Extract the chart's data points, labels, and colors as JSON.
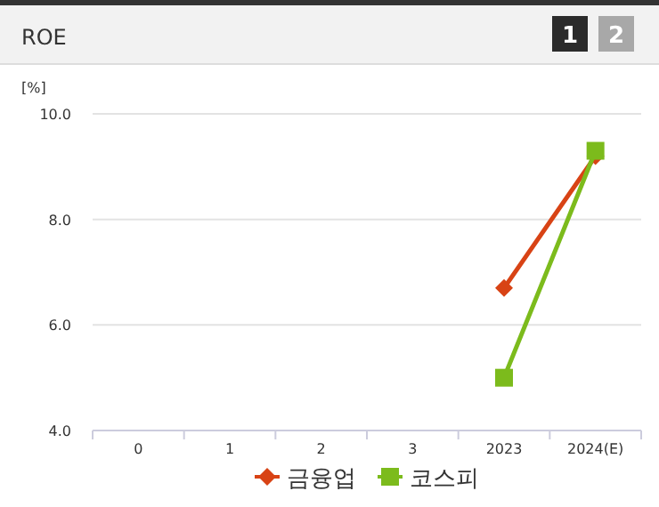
{
  "chart_data": {
    "type": "line",
    "title": "ROE",
    "ylabel": "[%]",
    "annotations": [
      "1",
      "2"
    ],
    "categories": [
      "0",
      "1",
      "2",
      "3",
      "2023",
      "2024(E)"
    ],
    "series": [
      {
        "name": "금융업",
        "color": "#d84315",
        "marker": "diamond",
        "values": [
          null,
          null,
          null,
          null,
          6.7,
          9.2
        ]
      },
      {
        "name": "코스피",
        "color": "#7cbb1c",
        "marker": "square",
        "values": [
          null,
          null,
          null,
          null,
          5.0,
          9.3
        ]
      }
    ],
    "ylim": [
      4.0,
      10.0
    ],
    "yticks": [
      {
        "value": 4,
        "label": "4.0"
      },
      {
        "value": 6,
        "label": "6.0"
      },
      {
        "value": 8,
        "label": "8.0"
      },
      {
        "value": 10,
        "label": "10.0"
      }
    ],
    "grid": "y",
    "legend": "bottom"
  }
}
